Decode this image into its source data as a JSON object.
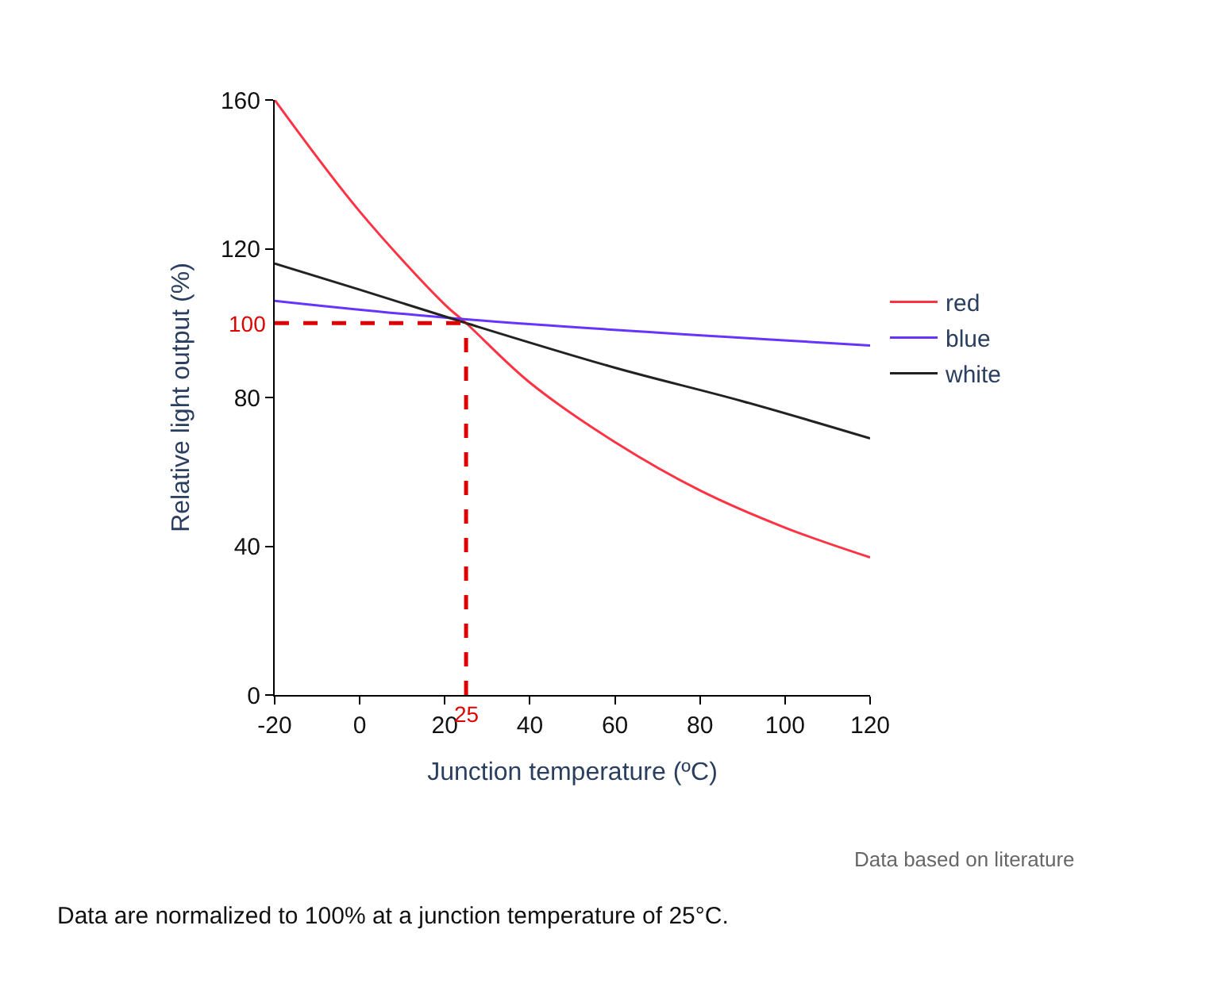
{
  "chart_data": {
    "type": "line",
    "xlabel": "Junction temperature (ºC)",
    "ylabel": "Relative light output (%)",
    "xlim": [
      -20,
      120
    ],
    "xticks": [
      -20,
      0,
      20,
      40,
      60,
      80,
      100,
      120
    ],
    "ylim": [
      0,
      160
    ],
    "yticks": [
      0,
      40,
      80,
      120,
      160
    ],
    "series": [
      {
        "name": "red",
        "color": "#ff3344",
        "x": [
          -20,
          0,
          20,
          25,
          40,
          60,
          80,
          100,
          120
        ],
        "values": [
          160,
          130,
          105,
          100,
          84,
          68,
          55,
          45,
          37
        ]
      },
      {
        "name": "blue",
        "color": "#6633ff",
        "x": [
          -20,
          25,
          120
        ],
        "values": [
          106,
          101,
          94
        ]
      },
      {
        "name": "white",
        "color": "#222222",
        "x": [
          -20,
          0,
          25,
          60,
          90,
          120
        ],
        "values": [
          116,
          109,
          100,
          88,
          79,
          69
        ]
      }
    ],
    "ref_lines": [
      {
        "axis": "y",
        "value": 100,
        "label": "100",
        "color": "#e00000",
        "line_style": "dashed"
      },
      {
        "axis": "x",
        "value": 25,
        "label": "25",
        "color": "#e00000",
        "line_style": "dashed"
      }
    ],
    "legend": "right",
    "marker": "none",
    "line_style": "solid",
    "annotations": [
      "Data based on literature",
      "Data are normalized to 100% at a junction temperature of 25°C."
    ]
  }
}
